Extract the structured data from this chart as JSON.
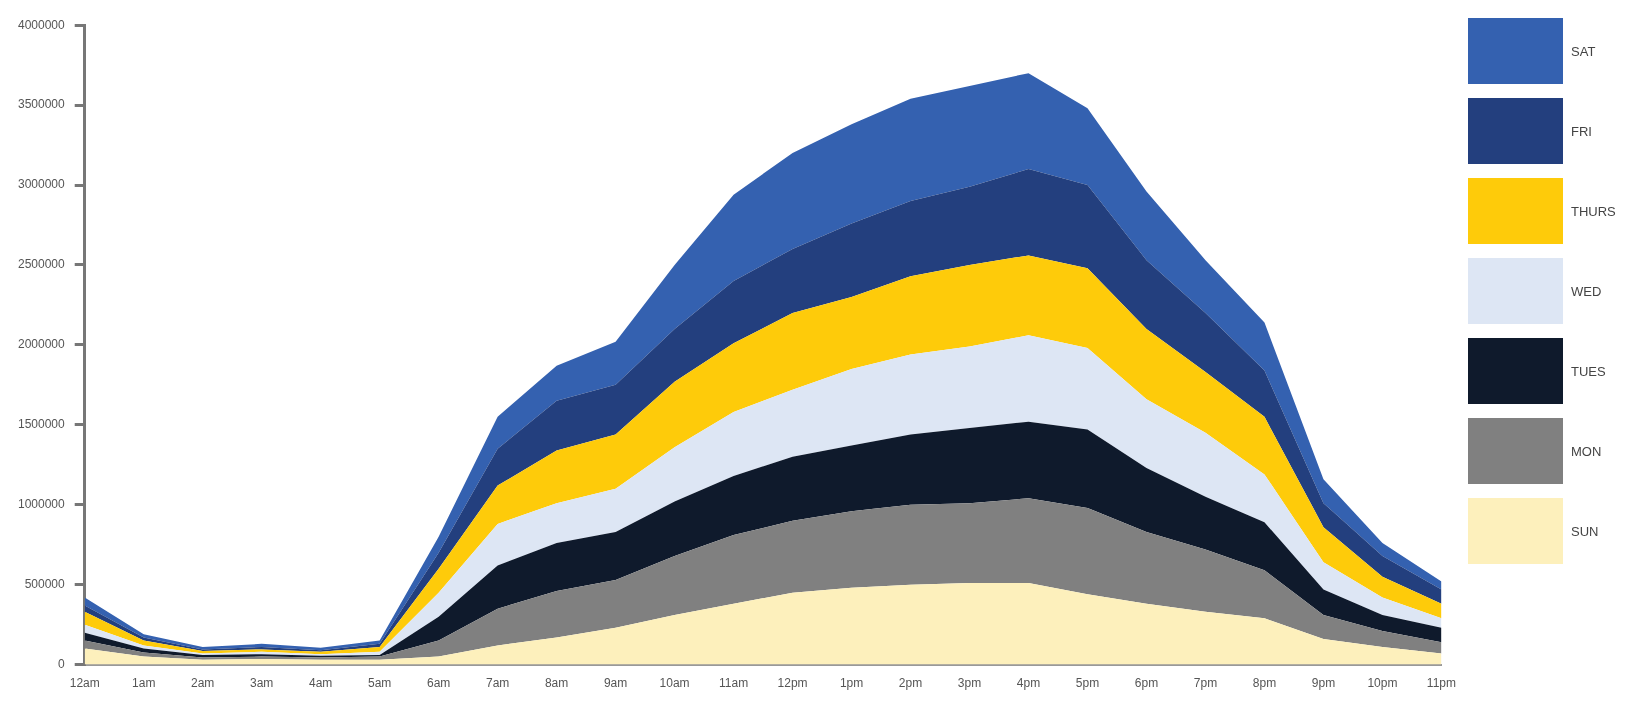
{
  "chart_data": {
    "type": "area",
    "stacked": true,
    "legend": "right",
    "grid": false,
    "marker": "none",
    "categories": [
      "12am",
      "1am",
      "2am",
      "3am",
      "4am",
      "5am",
      "6am",
      "7am",
      "8am",
      "9am",
      "10am",
      "11am",
      "12pm",
      "1pm",
      "2pm",
      "3pm",
      "4pm",
      "5pm",
      "6pm",
      "7pm",
      "8pm",
      "9pm",
      "10pm",
      "11pm"
    ],
    "ylim": [
      0,
      4000000
    ],
    "yticks": [
      0,
      500000,
      1000000,
      1500000,
      2000000,
      2500000,
      3000000,
      3500000,
      4000000
    ],
    "series": [
      {
        "name": "SUN",
        "color": "#fdf0bc",
        "values": [
          100000,
          50000,
          30000,
          35000,
          30000,
          30000,
          50000,
          120000,
          170000,
          230000,
          310000,
          380000,
          450000,
          480000,
          500000,
          510000,
          510000,
          440000,
          380000,
          330000,
          290000,
          160000,
          110000,
          70000
        ]
      },
      {
        "name": "MON",
        "color": "#808080",
        "values": [
          50000,
          25000,
          15000,
          15000,
          15000,
          20000,
          100000,
          230000,
          290000,
          300000,
          370000,
          430000,
          450000,
          480000,
          500000,
          500000,
          530000,
          540000,
          450000,
          390000,
          300000,
          150000,
          100000,
          70000
        ]
      },
      {
        "name": "TUES",
        "color": "#0f1a2c",
        "values": [
          50000,
          25000,
          15000,
          15000,
          10000,
          10000,
          150000,
          270000,
          300000,
          300000,
          340000,
          370000,
          400000,
          410000,
          440000,
          470000,
          480000,
          490000,
          400000,
          330000,
          300000,
          160000,
          100000,
          90000
        ]
      },
      {
        "name": "WED",
        "color": "#dde6f4",
        "values": [
          50000,
          20000,
          10000,
          15000,
          10000,
          20000,
          150000,
          260000,
          250000,
          270000,
          340000,
          400000,
          420000,
          480000,
          500000,
          510000,
          540000,
          510000,
          430000,
          400000,
          300000,
          170000,
          110000,
          60000
        ]
      },
      {
        "name": "THURS",
        "color": "#fecb0a",
        "values": [
          80000,
          30000,
          15000,
          15000,
          15000,
          30000,
          150000,
          240000,
          330000,
          340000,
          410000,
          430000,
          480000,
          450000,
          490000,
          510000,
          500000,
          500000,
          440000,
          380000,
          360000,
          220000,
          130000,
          90000
        ]
      },
      {
        "name": "FRI",
        "color": "#233f7e",
        "values": [
          40000,
          20000,
          10000,
          15000,
          10000,
          20000,
          100000,
          230000,
          310000,
          310000,
          330000,
          390000,
          400000,
          460000,
          470000,
          490000,
          540000,
          520000,
          430000,
          370000,
          290000,
          150000,
          130000,
          90000
        ]
      },
      {
        "name": "SAT",
        "color": "#3461b0",
        "values": [
          50000,
          20000,
          15000,
          20000,
          15000,
          20000,
          100000,
          200000,
          220000,
          270000,
          400000,
          540000,
          600000,
          620000,
          640000,
          630000,
          600000,
          480000,
          430000,
          330000,
          300000,
          150000,
          80000,
          50000
        ]
      }
    ]
  }
}
